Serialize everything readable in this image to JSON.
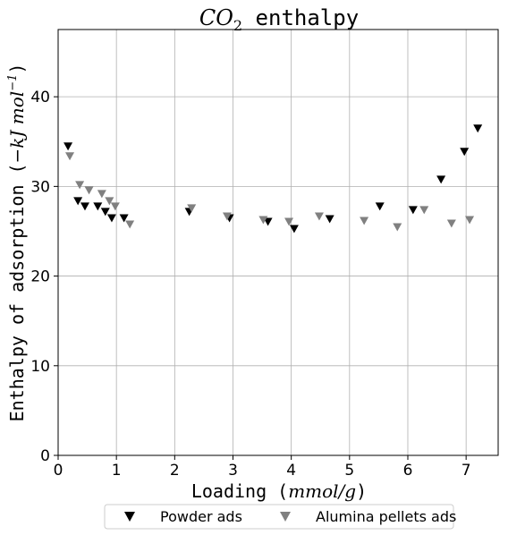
{
  "chart_data": {
    "type": "scatter",
    "title": "CO₂ enthalpy",
    "title_parts": {
      "base": "CO",
      "subscript": "2",
      "rest": " enthalpy"
    },
    "xlabel": "Loading (mmol/g)",
    "xlabel_parts": {
      "prefix": "Loading (",
      "math": "mmol/g",
      "suffix": ")"
    },
    "ylabel": "Enthalpy of adsorption (−kJ mol⁻¹)",
    "ylabel_parts": {
      "prefix": "Enthalpy of adsorption (",
      "math": "−kJ mol",
      "sup": "−1",
      "suffix": ")"
    },
    "xlim": [
      0,
      7.55
    ],
    "ylim": [
      0,
      47.5
    ],
    "xticks": [
      0,
      1,
      2,
      3,
      4,
      5,
      6,
      7
    ],
    "yticks": [
      0,
      10,
      20,
      30,
      40
    ],
    "grid": true,
    "legend_position": "bottom-center",
    "marker": "triangle-down",
    "series": [
      {
        "name": "Powder ads",
        "color": "#000000",
        "points": [
          [
            0.17,
            34.5
          ],
          [
            0.34,
            28.4
          ],
          [
            0.46,
            27.8
          ],
          [
            0.68,
            27.8
          ],
          [
            0.81,
            27.2
          ],
          [
            0.92,
            26.5
          ],
          [
            1.13,
            26.5
          ],
          [
            2.25,
            27.2
          ],
          [
            2.94,
            26.5
          ],
          [
            3.6,
            26.1
          ],
          [
            4.05,
            25.3
          ],
          [
            4.66,
            26.4
          ],
          [
            5.52,
            27.8
          ],
          [
            6.09,
            27.4
          ],
          [
            6.57,
            30.8
          ],
          [
            6.97,
            33.9
          ],
          [
            7.2,
            36.5
          ]
        ]
      },
      {
        "name": "Alumina pellets ads",
        "color": "#808080",
        "points": [
          [
            0.2,
            33.4
          ],
          [
            0.37,
            30.2
          ],
          [
            0.53,
            29.6
          ],
          [
            0.75,
            29.2
          ],
          [
            0.88,
            28.4
          ],
          [
            0.98,
            27.8
          ],
          [
            1.23,
            25.8
          ],
          [
            2.29,
            27.6
          ],
          [
            2.9,
            26.7
          ],
          [
            3.52,
            26.3
          ],
          [
            3.96,
            26.1
          ],
          [
            4.48,
            26.7
          ],
          [
            5.25,
            26.2
          ],
          [
            5.82,
            25.5
          ],
          [
            6.28,
            27.4
          ],
          [
            6.75,
            25.9
          ],
          [
            7.06,
            26.3
          ]
        ]
      }
    ]
  }
}
